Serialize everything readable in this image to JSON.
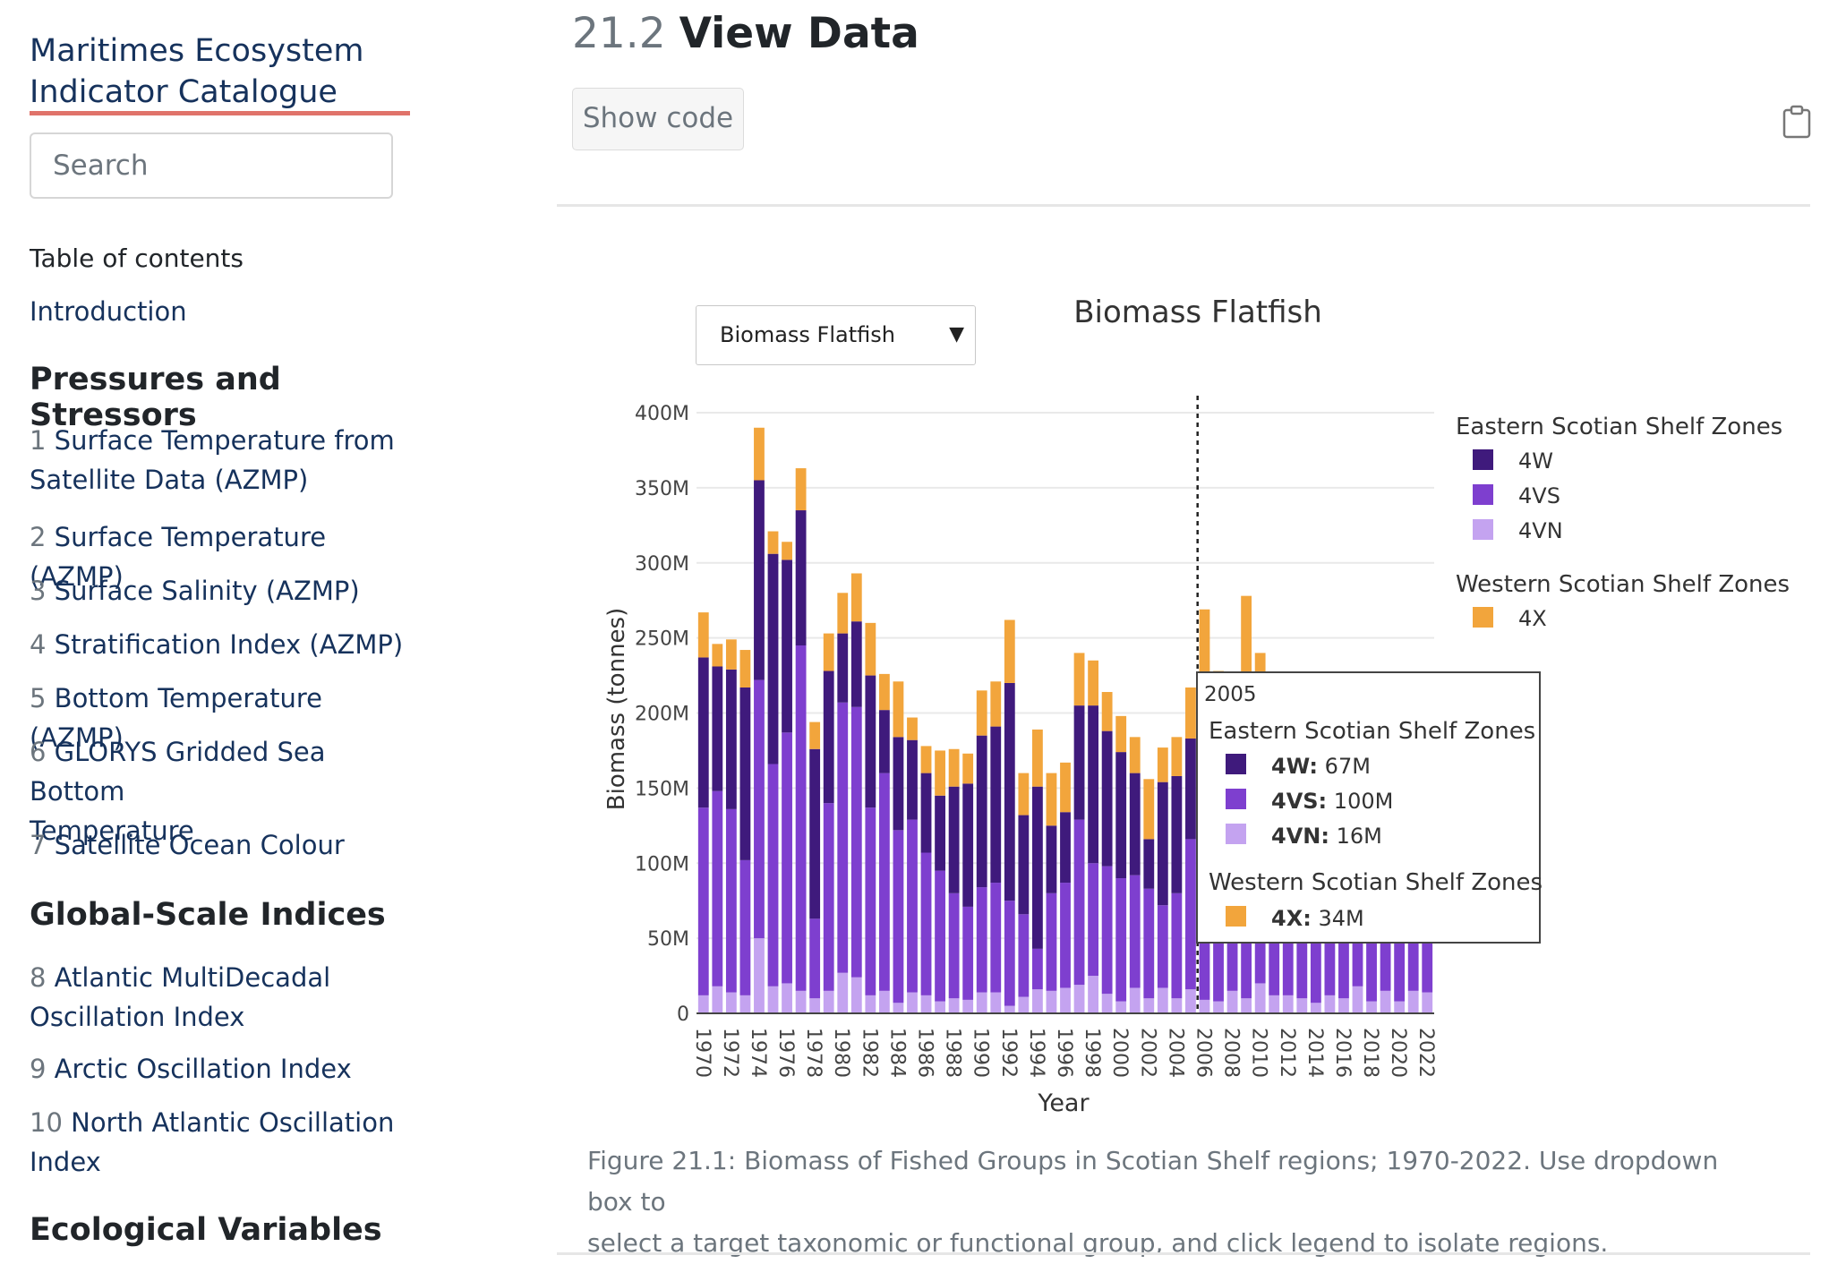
{
  "sidebar": {
    "brand_line1": "Maritimes Ecosystem",
    "brand_line2": "Indicator Catalogue",
    "search_placeholder": "Search",
    "toc_heading": "Table of contents",
    "intro": "Introduction",
    "sections": [
      "Pressures and Stressors",
      "Global-Scale Indices",
      "Ecological Variables"
    ],
    "items": [
      {
        "num": "1",
        "line1": "Surface Temperature from",
        "line2": "Satellite Data (AZMP)"
      },
      {
        "num": "2",
        "line1": "Surface Temperature (AZMP)",
        "line2": ""
      },
      {
        "num": "3",
        "line1": "Surface Salinity (AZMP)",
        "line2": ""
      },
      {
        "num": "4",
        "line1": "Stratification Index (AZMP)",
        "line2": ""
      },
      {
        "num": "5",
        "line1": "Bottom Temperature (AZMP)",
        "line2": ""
      },
      {
        "num": "6",
        "line1": "GLORYS Gridded Sea Bottom",
        "line2": "Temperature"
      },
      {
        "num": "7",
        "line1": "Satellite Ocean Colour",
        "line2": ""
      },
      {
        "num": "8",
        "line1": "Atlantic MultiDecadal",
        "line2": "Oscillation Index"
      },
      {
        "num": "9",
        "line1": "Arctic Oscillation Index",
        "line2": ""
      },
      {
        "num": "10",
        "line1": "North Atlantic Oscillation",
        "line2": "Index"
      }
    ]
  },
  "main": {
    "title_num": "21.2",
    "title_text": "View Data",
    "show_code": "Show code",
    "caption_line1": "Figure 21.1: Biomass of Fished Groups in Scotian Shelf regions; 1970-2022. Use dropdown box to",
    "caption_line2": "select a target taxonomic or functional group, and click legend to isolate regions."
  },
  "dropdown": {
    "selected": "Biomass Flatfish",
    "arrow": "▼"
  },
  "tooltip": {
    "year": "2005",
    "group1": "Eastern Scotian Shelf Zones",
    "group2": "Western Scotian Shelf Zones",
    "rows": [
      {
        "label": "4W:",
        "value": "67M",
        "color": "#3f1a7c"
      },
      {
        "label": "4VS:",
        "value": "100M",
        "color": "#7e3fcf"
      },
      {
        "label": "4VN:",
        "value": "16M",
        "color": "#c4a3f0"
      },
      {
        "label": "4X:",
        "value": "34M",
        "color": "#f2a53c"
      }
    ]
  },
  "chart_data": {
    "type": "bar",
    "stacked": true,
    "title": "Biomass Flatfish",
    "xlabel": "Year",
    "ylabel": "Biomass (tonnes)",
    "ylim": [
      0,
      400000000
    ],
    "yticks": [
      0,
      50000000,
      100000000,
      150000000,
      200000000,
      250000000,
      300000000,
      350000000,
      400000000
    ],
    "ytick_labels": [
      "0",
      "50M",
      "100M",
      "150M",
      "200M",
      "250M",
      "300M",
      "350M",
      "400M"
    ],
    "grid": true,
    "legend_position": "right",
    "legend_groups": [
      {
        "title": "Eastern Scotian Shelf Zones",
        "items": [
          "4W",
          "4VS",
          "4VN"
        ]
      },
      {
        "title": "Western Scotian Shelf Zones",
        "items": [
          "4X"
        ]
      }
    ],
    "hover_year": 2005,
    "categories": [
      1970,
      1971,
      1972,
      1973,
      1974,
      1975,
      1976,
      1977,
      1978,
      1979,
      1980,
      1981,
      1982,
      1983,
      1984,
      1985,
      1986,
      1987,
      1988,
      1989,
      1990,
      1991,
      1992,
      1993,
      1994,
      1995,
      1996,
      1997,
      1998,
      1999,
      2000,
      2001,
      2002,
      2003,
      2004,
      2005,
      2006,
      2007,
      2008,
      2009,
      2010,
      2011,
      2012,
      2013,
      2014,
      2015,
      2016,
      2017,
      2018,
      2019,
      2020,
      2021,
      2022
    ],
    "xtick_labels": [
      "1970",
      "1972",
      "1974",
      "1976",
      "1978",
      "1980",
      "1982",
      "1984",
      "1986",
      "1988",
      "1990",
      "1992",
      "1994",
      "1996",
      "1998",
      "2000",
      "2002",
      "2004",
      "2006",
      "2008",
      "2010",
      "2012",
      "2014",
      "2016",
      "2018",
      "2020",
      "2022"
    ],
    "series": [
      {
        "name": "4VN",
        "color": "#c4a3f0",
        "values": [
          12000000,
          18000000,
          14000000,
          12000000,
          50000000,
          18000000,
          20000000,
          15000000,
          10000000,
          15000000,
          27000000,
          24000000,
          12000000,
          15000000,
          7000000,
          14000000,
          12000000,
          8000000,
          10000000,
          9000000,
          14000000,
          14000000,
          5000000,
          11000000,
          16000000,
          15000000,
          17000000,
          19000000,
          25000000,
          13000000,
          8000000,
          17000000,
          10000000,
          17000000,
          10000000,
          16000000,
          9000000,
          8000000,
          15000000,
          10000000,
          20000000,
          12000000,
          12000000,
          10000000,
          7000000,
          12000000,
          10000000,
          18000000,
          8000000,
          15000000,
          8000000,
          15000000,
          14000000
        ]
      },
      {
        "name": "4VS",
        "color": "#7e3fcf",
        "values": [
          125000000,
          130000000,
          122000000,
          90000000,
          172000000,
          148000000,
          167000000,
          230000000,
          53000000,
          125000000,
          180000000,
          180000000,
          125000000,
          145000000,
          115000000,
          115000000,
          95000000,
          87000000,
          70000000,
          62000000,
          70000000,
          73000000,
          70000000,
          55000000,
          27000000,
          65000000,
          70000000,
          110000000,
          75000000,
          85000000,
          82000000,
          75000000,
          73000000,
          55000000,
          70000000,
          100000000,
          120000000,
          110000000,
          108000000,
          110000000,
          110000000,
          100000000,
          112000000,
          104000000,
          100000000,
          105000000,
          102000000,
          96000000,
          98000000,
          104000000,
          102000000,
          110000000,
          112000000
        ]
      },
      {
        "name": "4W",
        "color": "#3f1a7c",
        "values": [
          100000000,
          83000000,
          93000000,
          115000000,
          133000000,
          140000000,
          115000000,
          90000000,
          113000000,
          88000000,
          46000000,
          57000000,
          88000000,
          42000000,
          62000000,
          53000000,
          53000000,
          50000000,
          71000000,
          82000000,
          101000000,
          104000000,
          145000000,
          66000000,
          108000000,
          45000000,
          47000000,
          76000000,
          105000000,
          90000000,
          84000000,
          68000000,
          33000000,
          82000000,
          78000000,
          67000000,
          80000000,
          72000000,
          72000000,
          70000000,
          70000000,
          68000000,
          66000000,
          70000000,
          73000000,
          68000000,
          64000000,
          64000000,
          68000000,
          72000000,
          62000000,
          60000000,
          60000000
        ]
      },
      {
        "name": "4X",
        "color": "#f2a53c",
        "values": [
          30000000,
          15000000,
          20000000,
          25000000,
          35000000,
          15000000,
          12000000,
          28000000,
          18000000,
          25000000,
          27000000,
          32000000,
          35000000,
          24000000,
          37000000,
          15000000,
          18000000,
          30000000,
          25000000,
          20000000,
          30000000,
          30000000,
          42000000,
          28000000,
          38000000,
          35000000,
          33000000,
          35000000,
          30000000,
          26000000,
          24000000,
          24000000,
          40000000,
          23000000,
          26000000,
          34000000,
          60000000,
          38000000,
          30000000,
          88000000,
          40000000,
          30000000,
          20000000,
          30000000,
          40000000,
          30000000,
          20000000,
          25000000,
          30000000,
          25000000,
          30000000,
          25000000,
          25000000
        ]
      }
    ]
  }
}
